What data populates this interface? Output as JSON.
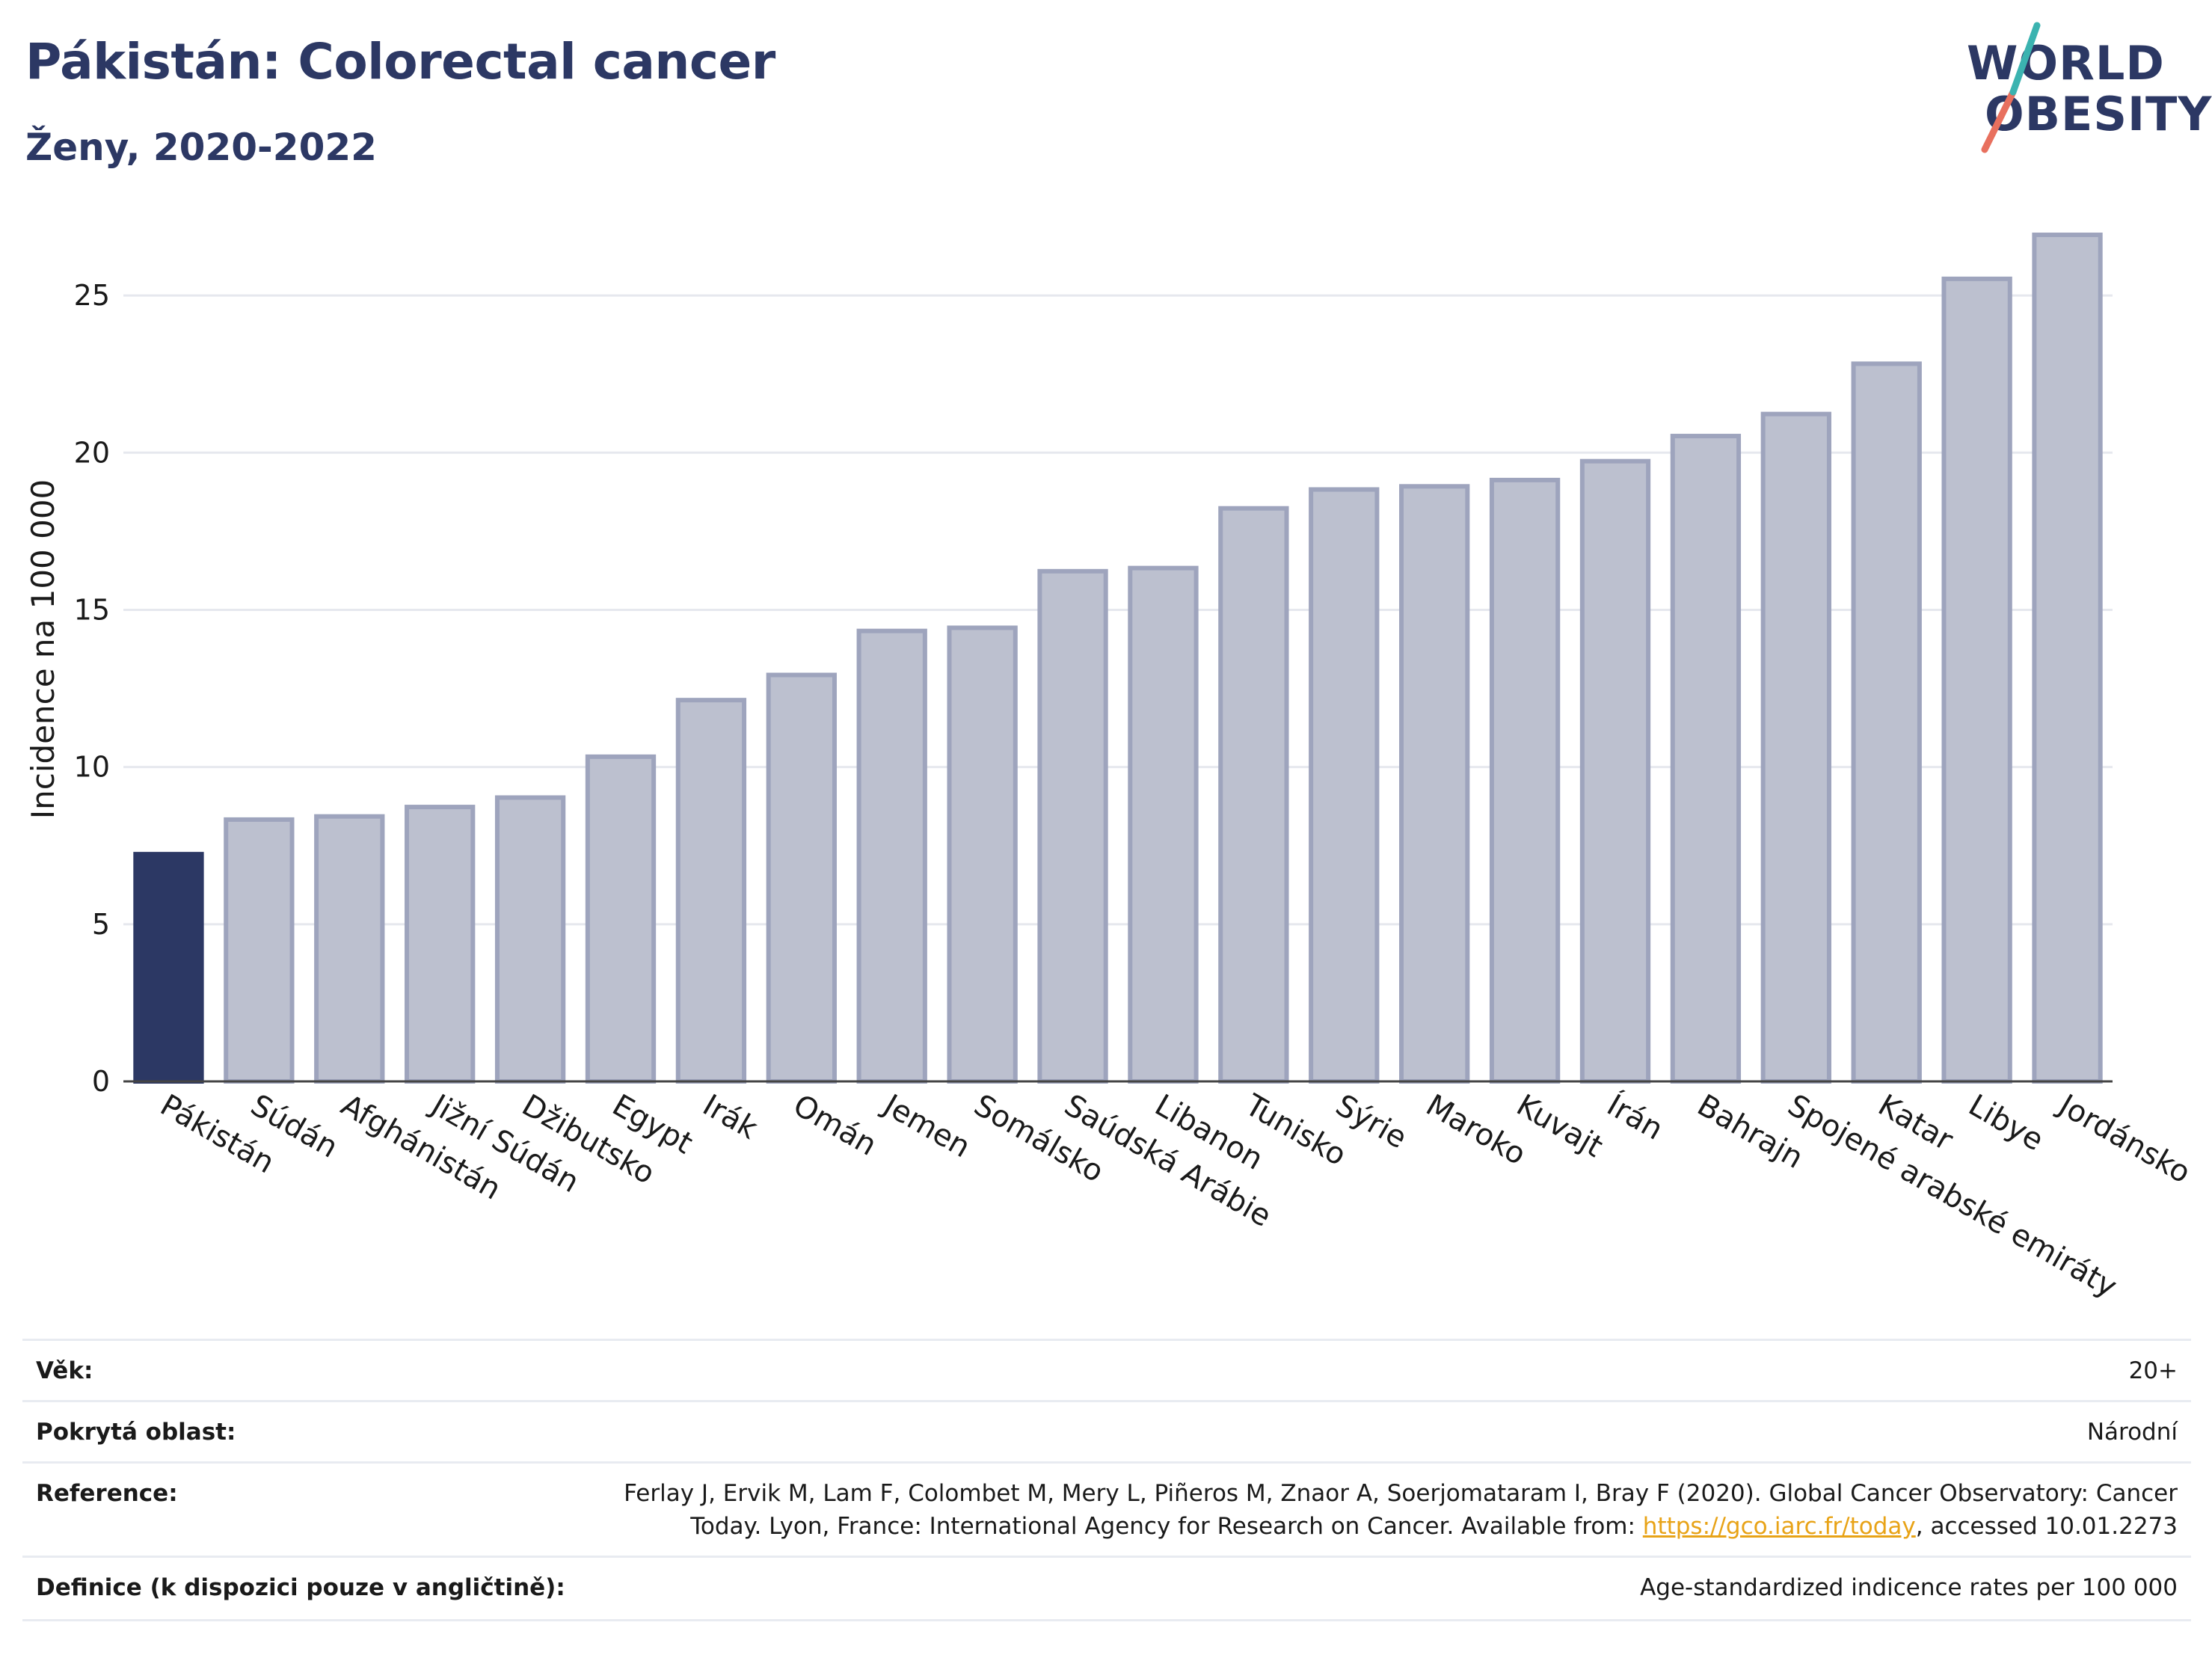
{
  "header": {
    "title": "Pákistán: Colorectal cancer",
    "subtitle": "Ženy, 2020-2022"
  },
  "logo": {
    "line1": "WORLD",
    "line2": "OBESITY"
  },
  "colors": {
    "highlight": "#2c3864",
    "bar": "#bcc0cf",
    "bar_stroke": "#9ea4bd",
    "grid": "#e6e8ee",
    "title": "#2c3864",
    "link": "#e8a317"
  },
  "chart_data": {
    "type": "bar",
    "title": "Pákistán: Colorectal cancer",
    "subtitle": "Ženy, 2020-2022",
    "ylabel": "Incidence na 100 000",
    "ylim": [
      0,
      27.5
    ],
    "yticks": [
      0,
      5,
      10,
      15,
      20,
      25
    ],
    "grid": true,
    "highlight": "Pákistán",
    "categories": [
      "Pákistán",
      "Súdán",
      "Afghánistán",
      "Jižní Súdán",
      "Džibutsko",
      "Egypt",
      "Irák",
      "Omán",
      "Jemen",
      "Somálsko",
      "Saúdská Arábie",
      "Libanon",
      "Tunisko",
      "Sýrie",
      "Maroko",
      "Kuvajt",
      "Írán",
      "Bahrajn",
      "Spojené arabské emiráty",
      "Katar",
      "Libye",
      "Jordánsko"
    ],
    "values": [
      7.3,
      8.4,
      8.5,
      8.8,
      9.1,
      10.4,
      12.2,
      13.0,
      14.4,
      14.5,
      16.3,
      16.4,
      18.3,
      18.9,
      19.0,
      19.2,
      19.8,
      20.6,
      21.3,
      22.9,
      25.6,
      27.0
    ]
  },
  "info": {
    "age": {
      "label": "Věk:",
      "value": "20+"
    },
    "area": {
      "label": "Pokrytá oblast:",
      "value": "Národní"
    },
    "reference": {
      "label": "Reference:",
      "line1": "Ferlay J, Ervik M, Lam F, Colombet M, Mery L, Piñeros M, Znaor A, Soerjomataram I, Bray F (2020). Global Cancer Observatory: Cancer",
      "line2_pre": "Today. Lyon, France: International Agency for Research on Cancer. Available from: ",
      "link": "https://gco.iarc.fr/today",
      "line2_post": ", accessed 10.01.2273"
    },
    "definition": {
      "label": "Definice (k dispozici pouze v angličtině):",
      "value": "Age-standardized indicence rates per 100 000"
    }
  }
}
